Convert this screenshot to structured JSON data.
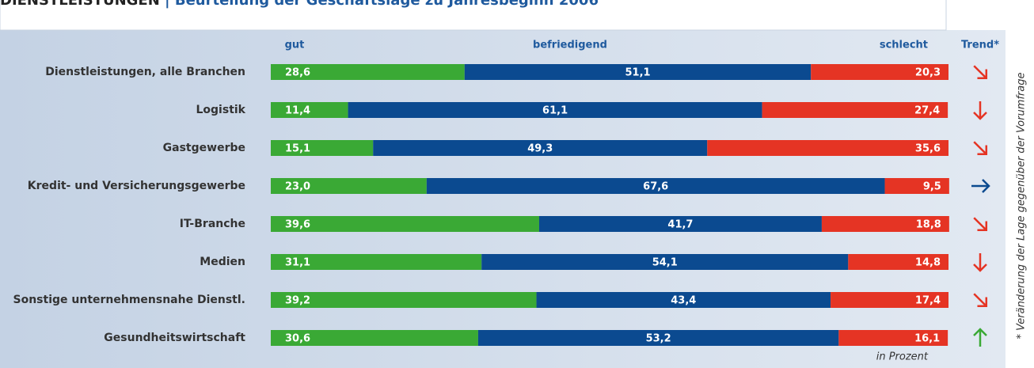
{
  "chart_data": {
    "type": "stacked-bar",
    "title": "DIENSTLEISTUNGEN",
    "subtitle": "Beurteilung der Geschäftslage zu Jahresbeginn 2006",
    "categories": [
      "Dienstleistungen, alle Branchen",
      "Logistik",
      "Gastgewerbe",
      "Kredit- und Versicherungsgewerbe",
      "IT-Branche",
      "Medien",
      "Sonstige unternehmensnahe Dienstl.",
      "Gesundheitswirtschaft"
    ],
    "series": [
      {
        "name": "gut",
        "color": "#3aa935",
        "values": [
          28.6,
          11.4,
          15.1,
          23.0,
          39.6,
          31.1,
          39.2,
          30.6
        ],
        "value_labels": [
          "28,6",
          "11,4",
          "15,1",
          "23,0",
          "39,6",
          "31,1",
          "39,2",
          "30,6"
        ]
      },
      {
        "name": "befriedigend",
        "color": "#0b4a90",
        "values": [
          51.1,
          61.1,
          49.3,
          67.6,
          41.7,
          54.1,
          43.4,
          53.2
        ],
        "value_labels": [
          "51,1",
          "61,1",
          "49,3",
          "67,6",
          "41,7",
          "54,1",
          "43,4",
          "53,2"
        ]
      },
      {
        "name": "schlecht",
        "color": "#e53424",
        "values": [
          20.3,
          27.4,
          35.6,
          9.5,
          18.8,
          14.8,
          17.4,
          16.1
        ],
        "value_labels": [
          "20,3",
          "27,4",
          "35,6",
          "9,5",
          "18,8",
          "14,8",
          "17,4",
          "16,1"
        ]
      }
    ],
    "trend_label": "Trend*",
    "trend": [
      "down-right",
      "down",
      "down-right",
      "right",
      "down-right",
      "down",
      "down-right",
      "up"
    ],
    "trend_colors": {
      "down-right": "#e53424",
      "down": "#e53424",
      "right": "#0b4a90",
      "up": "#3aa935"
    },
    "unit_note": "in Prozent",
    "footnote": "* Veränderung der Lage gegenüber der Vorumfrage"
  }
}
